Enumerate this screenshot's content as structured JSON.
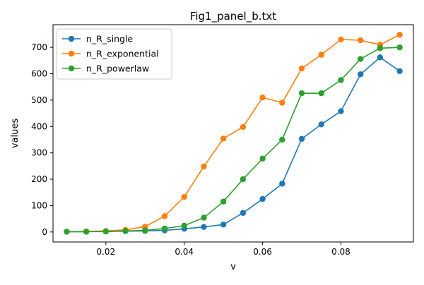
{
  "chart_data": {
    "type": "line",
    "title": "Fig1_panel_b.txt",
    "xlabel": "v",
    "ylabel": "values",
    "xlim": [
      0.0065,
      0.0985
    ],
    "ylim": [
      -38,
      786
    ],
    "x_ticks": [
      0.02,
      0.04,
      0.06,
      0.08
    ],
    "x_tick_labels": [
      "0.02",
      "0.04",
      "0.06",
      "0.08"
    ],
    "y_ticks": [
      0,
      100,
      200,
      300,
      400,
      500,
      600,
      700
    ],
    "y_tick_labels": [
      "0",
      "100",
      "200",
      "300",
      "400",
      "500",
      "600",
      "700"
    ],
    "grid": false,
    "legend_position": "top-left",
    "x": [
      0.01,
      0.015,
      0.02,
      0.025,
      0.03,
      0.035,
      0.04,
      0.045,
      0.05,
      0.055,
      0.06,
      0.065,
      0.07,
      0.075,
      0.08,
      0.085,
      0.09,
      0.095
    ],
    "series": [
      {
        "name": "n_R_single",
        "color": "#1f77b4",
        "values": [
          1,
          1,
          2,
          3,
          4,
          6,
          12,
          19,
          28,
          72,
          125,
          183,
          353,
          408,
          458,
          598,
          662,
          610
        ]
      },
      {
        "name": "n_R_exponential",
        "color": "#ff7f0e",
        "values": [
          1,
          2,
          4,
          8,
          20,
          60,
          133,
          248,
          354,
          398,
          510,
          490,
          620,
          672,
          730,
          727,
          710,
          748
        ]
      },
      {
        "name": "n_R_powerlaw",
        "color": "#2ca02c",
        "values": [
          1,
          1,
          2,
          4,
          6,
          13,
          24,
          54,
          115,
          200,
          278,
          350,
          526,
          526,
          576,
          656,
          697,
          700
        ]
      }
    ]
  }
}
